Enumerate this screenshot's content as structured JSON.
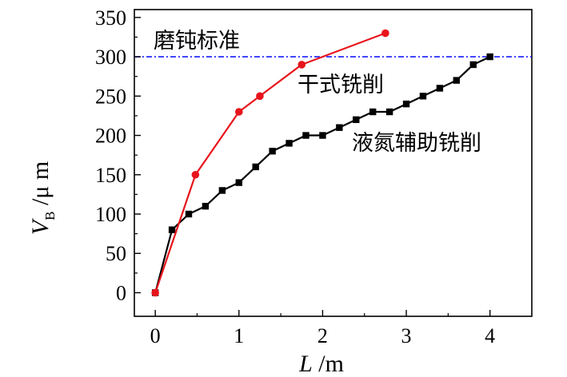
{
  "chart_data": {
    "type": "line",
    "xlabel": "L /m",
    "ylabel": "V_B /μm",
    "ylabel_main": "V",
    "ylabel_sub": "B",
    "ylabel_unit": " /μ m",
    "xlabel_main": "L",
    "xlabel_unit": " /m",
    "xlim": [
      -0.25,
      4.5
    ],
    "ylim": [
      -30,
      360
    ],
    "xticks": [
      0,
      1,
      2,
      3,
      4
    ],
    "yticks": [
      0,
      50,
      100,
      150,
      200,
      250,
      300,
      350
    ],
    "grid": false,
    "legend": "none",
    "reference_line": {
      "label": "磨钝标准",
      "y": 300,
      "color": "#1a1aff",
      "style": "dash-dot"
    },
    "series": [
      {
        "name": "干式铣削",
        "color": "#e8141c",
        "marker": "circle",
        "x": [
          0,
          0.48,
          1.0,
          1.25,
          1.75,
          2.75
        ],
        "y": [
          0,
          150,
          230,
          250,
          290,
          330
        ]
      },
      {
        "name": "液氮辅助铣削",
        "color": "#000000",
        "marker": "square",
        "x": [
          0,
          0.2,
          0.4,
          0.6,
          0.8,
          1.0,
          1.2,
          1.4,
          1.6,
          1.8,
          2.0,
          2.2,
          2.4,
          2.6,
          2.8,
          3.0,
          3.2,
          3.4,
          3.6,
          3.8,
          4.0
        ],
        "y": [
          0,
          80,
          100,
          110,
          130,
          140,
          160,
          180,
          190,
          200,
          200,
          210,
          220,
          230,
          230,
          240,
          250,
          260,
          270,
          290,
          300
        ]
      }
    ]
  }
}
